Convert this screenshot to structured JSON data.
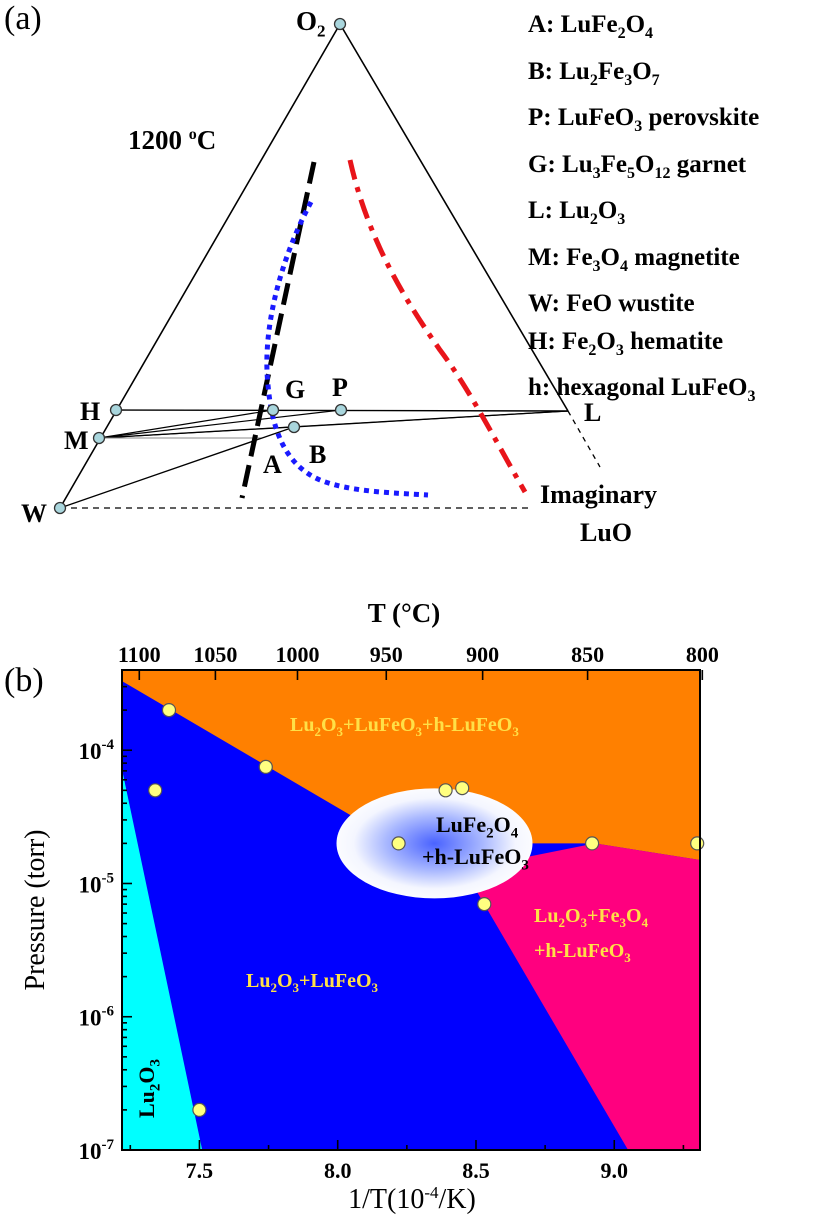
{
  "panel_a": {
    "label": "(a)",
    "temperature": "1200 ",
    "temperature_sup": "o",
    "temperature_unit": "C",
    "apex_top": "O",
    "apex_top_sub": "2",
    "imaginary_label_1": "Imaginary",
    "imaginary_label_2": "LuO",
    "points": {
      "H": "H",
      "M": "M",
      "W": "W",
      "G": "G",
      "P": "P",
      "A": "A",
      "B": "B",
      "L": "L"
    },
    "legend": [
      {
        "key": "A: ",
        "parts": [
          [
            "LuFe",
            ""
          ],
          [
            "2",
            "sub"
          ],
          [
            "O",
            ""
          ],
          [
            "4",
            "sub"
          ]
        ]
      },
      {
        "key": "B: ",
        "parts": [
          [
            "Lu",
            ""
          ],
          [
            "2",
            "sub"
          ],
          [
            "Fe",
            ""
          ],
          [
            "3",
            "sub"
          ],
          [
            "O",
            ""
          ],
          [
            "7",
            "sub"
          ]
        ]
      },
      {
        "key": "P: ",
        "parts": [
          [
            "LuFeO",
            ""
          ],
          [
            "3",
            "sub"
          ],
          [
            " perovskite",
            ""
          ]
        ]
      },
      {
        "key": "G: ",
        "parts": [
          [
            "Lu",
            ""
          ],
          [
            "3",
            "sub"
          ],
          [
            "Fe",
            ""
          ],
          [
            "5",
            "sub"
          ],
          [
            "O",
            ""
          ],
          [
            "12",
            "sub"
          ],
          [
            " garnet",
            ""
          ]
        ]
      },
      {
        "key": "L: ",
        "parts": [
          [
            "Lu",
            ""
          ],
          [
            "2",
            "sub"
          ],
          [
            "O",
            ""
          ],
          [
            "3",
            "sub"
          ]
        ]
      },
      {
        "key": "M: ",
        "parts": [
          [
            "Fe",
            ""
          ],
          [
            "3",
            "sub"
          ],
          [
            "O",
            ""
          ],
          [
            "4",
            "sub"
          ],
          [
            " magnetite",
            ""
          ]
        ]
      },
      {
        "key": "W: ",
        "parts": [
          [
            "FeO wustite",
            ""
          ]
        ]
      },
      {
        "key": "H: ",
        "parts": [
          [
            "Fe",
            ""
          ],
          [
            "2",
            "sub"
          ],
          [
            "O",
            ""
          ],
          [
            "3",
            "sub"
          ],
          [
            " hematite",
            ""
          ]
        ]
      },
      {
        "key": "h: ",
        "parts": [
          [
            "hexagonal LuFeO",
            ""
          ],
          [
            "3",
            "sub"
          ]
        ]
      }
    ],
    "colors": {
      "black": "#000000",
      "blue": "#1a1aff",
      "red": "#e8141a",
      "point": "#a9d6dd"
    }
  },
  "panel_b": {
    "label": "(b)",
    "top_axis_title": "T (°C)",
    "top_ticks": [
      "1100",
      "1050",
      "1000",
      "950",
      "900",
      "850",
      "800"
    ],
    "x_axis_title_main": "1/T(10",
    "x_axis_title_sup": "-4",
    "x_axis_title_end": "/K)",
    "x_ticks": [
      "7.5",
      "8.0",
      "8.5",
      "9.0"
    ],
    "y_axis_title": "Pressure (torr)",
    "y_ticks": [
      {
        "base": "10",
        "exp": "-4"
      },
      {
        "base": "10",
        "exp": "-5"
      },
      {
        "base": "10",
        "exp": "-6"
      },
      {
        "base": "10",
        "exp": "-7"
      }
    ],
    "region_labels": {
      "orange": [
        [
          "Lu",
          ""
        ],
        [
          "2",
          "sub"
        ],
        [
          "O",
          ""
        ],
        [
          "3",
          "sub"
        ],
        [
          "+LuFeO",
          ""
        ],
        [
          "3",
          "sub"
        ],
        [
          "+h-LuFeO",
          ""
        ],
        [
          "3",
          "sub"
        ]
      ],
      "blue": [
        [
          "Lu",
          ""
        ],
        [
          "2",
          "sub"
        ],
        [
          "O",
          ""
        ],
        [
          "3",
          "sub"
        ],
        [
          "+LuFeO",
          ""
        ],
        [
          "3",
          "sub"
        ]
      ],
      "pink_1": [
        [
          "Lu",
          ""
        ],
        [
          "2",
          "sub"
        ],
        [
          "O",
          ""
        ],
        [
          "3",
          "sub"
        ],
        [
          "+Fe",
          ""
        ],
        [
          "3",
          "sub"
        ],
        [
          "O",
          ""
        ],
        [
          "4",
          "sub"
        ]
      ],
      "pink_2": [
        [
          "+h-LuFeO",
          ""
        ],
        [
          "3",
          "sub"
        ]
      ],
      "ellipse_1": [
        [
          "LuFe",
          ""
        ],
        [
          "2",
          "sub"
        ],
        [
          "O",
          ""
        ],
        [
          "4",
          "sub"
        ]
      ],
      "ellipse_2": [
        [
          "+h-LuFeO",
          ""
        ],
        [
          "3",
          "sub"
        ]
      ],
      "cyan": [
        [
          "Lu",
          ""
        ],
        [
          "2",
          "sub"
        ],
        [
          "O",
          ""
        ],
        [
          "3",
          "sub"
        ]
      ]
    },
    "colors": {
      "orange": "#ff8000",
      "blue": "#0000ff",
      "cyan": "#00ffff",
      "pink": "#ff007f",
      "label": "#ffe047",
      "point": "#ffff80"
    }
  },
  "chart_data": [
    {
      "type": "ternary phase diagram",
      "apices": [
        "O2",
        "L",
        "Imaginary LuO"
      ],
      "phase_points": [
        "H",
        "M",
        "W",
        "G",
        "P",
        "A",
        "B",
        "L"
      ],
      "curves": [
        "black dashed",
        "blue dotted",
        "red dash-dot"
      ]
    },
    {
      "type": "scatter",
      "xlabel": "1/T(10^-4/K)",
      "ylabel": "Pressure (torr)",
      "top_xlabel": "T (°C)",
      "xlim": [
        7.22,
        9.31
      ],
      "ylim": [
        1e-07,
        0.0004
      ],
      "y_scale": "log",
      "regions": [
        {
          "name": "Lu2O3",
          "color": "#00ffff"
        },
        {
          "name": "Lu2O3+LuFeO3",
          "color": "#0000ff"
        },
        {
          "name": "Lu2O3+LuFeO3+h-LuFeO3",
          "color": "#ff8000"
        },
        {
          "name": "Lu2O3+Fe3O4+h-LuFeO3",
          "color": "#ff007f"
        },
        {
          "name": "LuFe2O4+h-LuFeO3",
          "color": "#ffffff"
        }
      ],
      "boundaries": [
        {
          "x": [
            7.22,
            8.22,
            8.93,
            9.31
          ],
          "y": [
            0.00033,
            2e-05,
            2e-05,
            1.5e-05
          ]
        },
        {
          "x": [
            8.48,
            9.05
          ],
          "y": [
            1.05e-05,
            1e-07
          ]
        },
        {
          "x": [
            7.22,
            7.51
          ],
          "y": [
            7.2e-05,
            1e-07
          ]
        }
      ],
      "points": [
        {
          "x": 7.39,
          "y": 0.0002
        },
        {
          "x": 7.74,
          "y": 7.5e-05
        },
        {
          "x": 7.34,
          "y": 5e-05
        },
        {
          "x": 8.22,
          "y": 2e-05
        },
        {
          "x": 8.39,
          "y": 5e-05
        },
        {
          "x": 8.45,
          "y": 5.2e-05
        },
        {
          "x": 8.53,
          "y": 7e-06
        },
        {
          "x": 8.92,
          "y": 2e-05
        },
        {
          "x": 9.3,
          "y": 2e-05
        },
        {
          "x": 7.5,
          "y": 2e-07
        }
      ]
    }
  ]
}
